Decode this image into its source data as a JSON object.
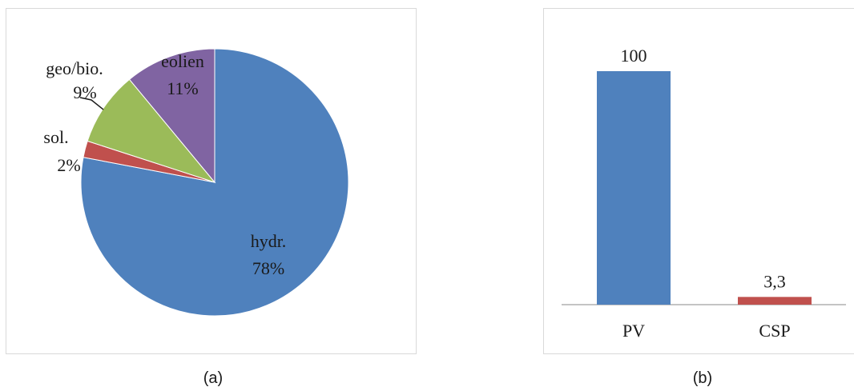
{
  "captions": {
    "a": "(a)",
    "b": "(b)"
  },
  "chart_data": [
    {
      "type": "pie",
      "slices": [
        {
          "name": "hydr.",
          "value": 78,
          "label": "78%",
          "color": "#4f81bd"
        },
        {
          "name": "sol.",
          "value": 2,
          "label": "2%",
          "color": "#c0504d"
        },
        {
          "name": "geo/bio.",
          "value": 9,
          "label": "9%",
          "color": "#9bbb59"
        },
        {
          "name": "eolien",
          "value": 11,
          "label": "11%",
          "color": "#8064a2"
        }
      ],
      "start": "12 o'clock",
      "direction": "clockwise",
      "legend": "none"
    },
    {
      "type": "bar",
      "categories": [
        "PV",
        "CSP"
      ],
      "values": [
        100,
        3.3
      ],
      "value_labels": [
        "100",
        "3,3"
      ],
      "colors": [
        "#4f81bd",
        "#c0504d"
      ],
      "ylim": [
        0,
        100
      ],
      "grid": false,
      "legend": "none"
    }
  ]
}
